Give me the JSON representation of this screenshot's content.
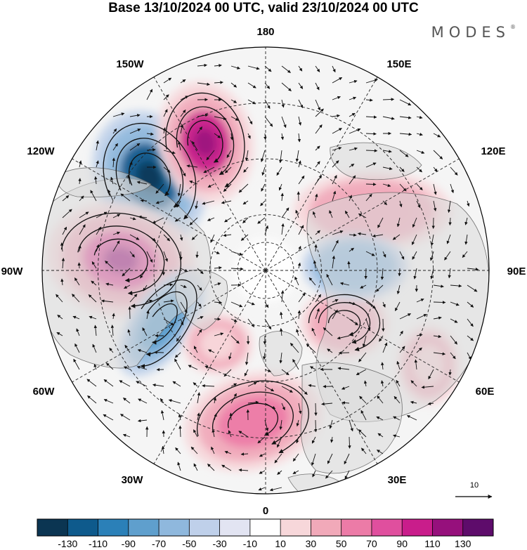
{
  "title": "Base 13/10/2024 00 UTC, valid 23/10/2024 00 UTC",
  "brand": "MODES",
  "brand_mark": "®",
  "longitude_labels": [
    "180",
    "150E",
    "120E",
    "90E",
    "60E",
    "30E",
    "0",
    "30W",
    "60W",
    "90W",
    "120W",
    "150W"
  ],
  "reference_vector_label": "10",
  "colorbar": {
    "tick_labels": [
      "-130",
      "-110",
      "-90",
      "-70",
      "-50",
      "-30",
      "-10",
      "10",
      "30",
      "50",
      "70",
      "90",
      "110",
      "130"
    ],
    "colors": [
      "#0b3552",
      "#0e5a8c",
      "#2b80b8",
      "#5f9fcd",
      "#8fb8dd",
      "#bfd0ea",
      "#e2e4f2",
      "#ffffff",
      "#f7d7da",
      "#f1a9b9",
      "#ec7ba7",
      "#e04f9e",
      "#c91d8b",
      "#96107c",
      "#5e0c6b"
    ]
  },
  "anomaly_centers": [
    {
      "label": "",
      "value": -120,
      "color": "#0e5a8c"
    },
    {
      "label": "",
      "value": 100,
      "color": "#c91d8b"
    },
    {
      "label": "",
      "value": 80,
      "color": "#e04f9e"
    },
    {
      "label": "",
      "value": 60,
      "color": "#ec7ba7"
    },
    {
      "label": "",
      "value": -60,
      "color": "#5f9fcd"
    },
    {
      "label": "",
      "value": 50,
      "color": "#f1a9b9"
    },
    {
      "label": "",
      "value": 40,
      "color": "#f1a9b9"
    },
    {
      "label": "",
      "value": -40,
      "color": "#8fb8dd"
    },
    {
      "label": "",
      "value": 30,
      "color": "#f7d7da"
    },
    {
      "label": "",
      "value": 20,
      "color": "#f7d7da"
    }
  ]
}
